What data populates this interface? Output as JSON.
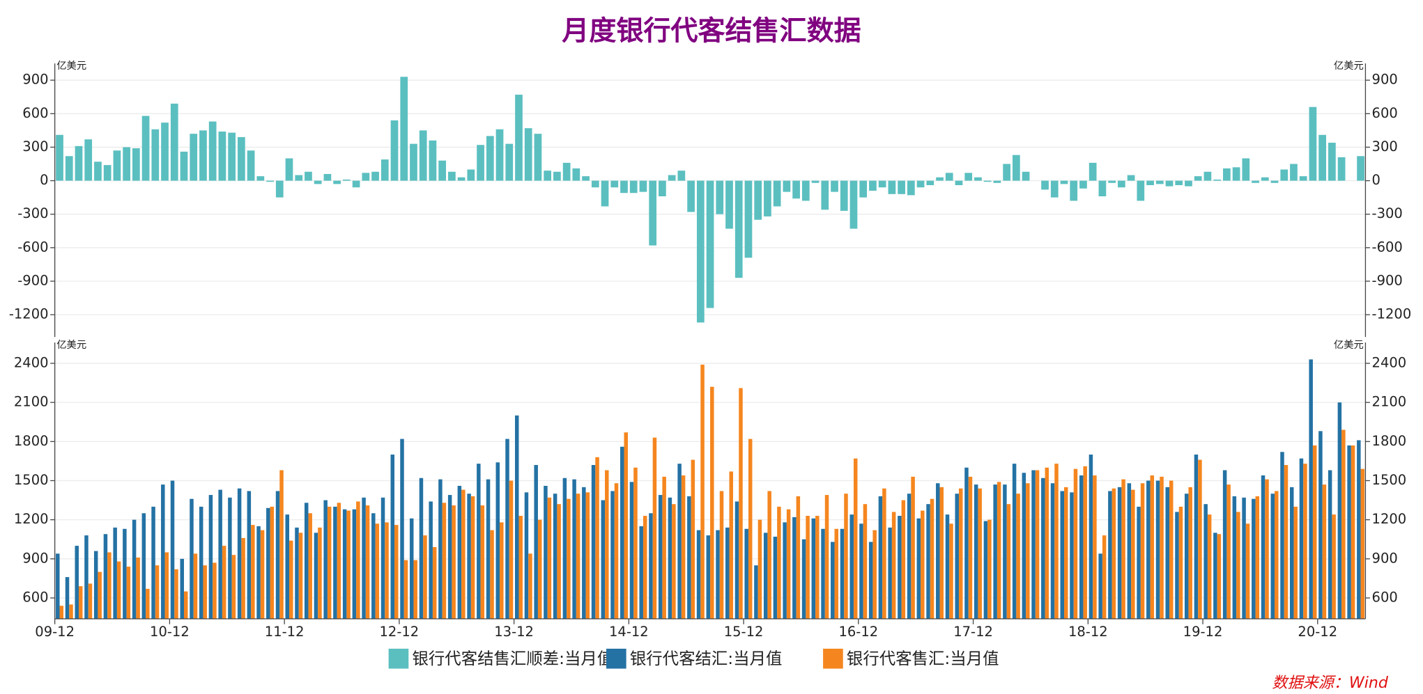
{
  "title": "月度银行代客结售汇数据",
  "source": "数据来源：Wind",
  "chart_data": [
    {
      "type": "bar",
      "ylabel": "亿美元",
      "ylim": [
        -1400,
        1050
      ],
      "yticks": [
        -1200,
        -900,
        -600,
        -300,
        0,
        300,
        600,
        900
      ],
      "grid": true,
      "series": [
        {
          "name": "银行代客结售汇顺差:当月值",
          "color": "#5bbfc0",
          "values": [
            410,
            220,
            310,
            370,
            170,
            140,
            270,
            300,
            290,
            580,
            460,
            520,
            690,
            260,
            420,
            450,
            530,
            440,
            430,
            390,
            270,
            40,
            -10,
            -150,
            200,
            50,
            80,
            -30,
            60,
            -30,
            10,
            -60,
            70,
            80,
            190,
            540,
            930,
            330,
            450,
            360,
            180,
            80,
            30,
            100,
            320,
            400,
            460,
            330,
            770,
            470,
            420,
            90,
            80,
            160,
            110,
            40,
            -60,
            -230,
            -60,
            -110,
            -110,
            -100,
            -580,
            -140,
            50,
            90,
            -280,
            -1270,
            -1140,
            -300,
            -430,
            -870,
            -690,
            -350,
            -320,
            -230,
            -100,
            -160,
            -180,
            -20,
            -260,
            -100,
            -270,
            -430,
            -150,
            -90,
            -60,
            -120,
            -120,
            -130,
            -60,
            -40,
            30,
            70,
            -40,
            70,
            30,
            -10,
            -20,
            150,
            230,
            80,
            0,
            -80,
            -150,
            -30,
            -180,
            -70,
            160,
            -140,
            -20,
            -60,
            50,
            -180,
            -40,
            -30,
            -50,
            -40,
            -50,
            40,
            80,
            10,
            110,
            120,
            200,
            -20,
            30,
            -20,
            100,
            150,
            40,
            660,
            410,
            340,
            210,
            0,
            220
          ]
        }
      ]
    },
    {
      "type": "bar",
      "ylabel": "亿美元",
      "ylim": [
        440,
        2560
      ],
      "yticks": [
        600,
        900,
        1200,
        1500,
        1800,
        2100,
        2400
      ],
      "grid": true,
      "categories": [
        "09-12",
        null,
        null,
        null,
        null,
        null,
        null,
        null,
        null,
        null,
        null,
        null,
        "10-12",
        null,
        null,
        null,
        null,
        null,
        null,
        null,
        null,
        null,
        null,
        null,
        "11-12",
        null,
        null,
        null,
        null,
        null,
        null,
        null,
        null,
        null,
        null,
        null,
        "12-12",
        null,
        null,
        null,
        null,
        null,
        null,
        null,
        null,
        null,
        null,
        null,
        "13-12",
        null,
        null,
        null,
        null,
        null,
        null,
        null,
        null,
        null,
        null,
        null,
        "14-12",
        null,
        null,
        null,
        null,
        null,
        null,
        null,
        null,
        null,
        null,
        null,
        "15-12",
        null,
        null,
        null,
        null,
        null,
        null,
        null,
        null,
        null,
        null,
        null,
        "16-12",
        null,
        null,
        null,
        null,
        null,
        null,
        null,
        null,
        null,
        null,
        null,
        "17-12",
        null,
        null,
        null,
        null,
        null,
        null,
        null,
        null,
        null,
        null,
        null,
        "18-12",
        null,
        null,
        null,
        null,
        null,
        null,
        null,
        null,
        null,
        null,
        null,
        "19-12",
        null,
        null,
        null,
        null,
        null,
        null,
        null,
        null,
        null,
        null,
        null,
        "20-12",
        null,
        null,
        null,
        null
      ],
      "series": [
        {
          "name": "银行代客结汇:当月值",
          "color": "#2472a4",
          "values": [
            940,
            760,
            1000,
            1080,
            960,
            1090,
            1140,
            1130,
            1200,
            1250,
            1300,
            1470,
            1500,
            900,
            1360,
            1300,
            1390,
            1430,
            1370,
            1440,
            1420,
            1150,
            1290,
            1420,
            1240,
            1140,
            1330,
            1100,
            1350,
            1300,
            1280,
            1280,
            1370,
            1250,
            1370,
            1700,
            1820,
            1210,
            1520,
            1340,
            1510,
            1390,
            1460,
            1400,
            1630,
            1510,
            1640,
            1820,
            2000,
            1410,
            1620,
            1460,
            1400,
            1520,
            1510,
            1450,
            1620,
            1350,
            1420,
            1760,
            1490,
            1150,
            1250,
            1390,
            1370,
            1630,
            1380,
            1120,
            1080,
            1120,
            1140,
            1340,
            1130,
            850,
            1100,
            1070,
            1180,
            1220,
            1050,
            1210,
            1130,
            1030,
            1130,
            1240,
            1170,
            1030,
            1380,
            1140,
            1230,
            1400,
            1210,
            1320,
            1480,
            1240,
            1400,
            1600,
            1470,
            1190,
            1470,
            1470,
            1630,
            1560,
            1580,
            1520,
            1480,
            1420,
            1410,
            1540,
            1700,
            940,
            1420,
            1450,
            1480,
            1300,
            1500,
            1500,
            1450,
            1260,
            1400,
            1700,
            1320,
            1100,
            1580,
            1380,
            1370,
            1360,
            1540,
            1400,
            1720,
            1450,
            1670,
            2430,
            1880,
            1580,
            2100,
            1770,
            1810
          ]
        },
        {
          "name": "银行代客售汇:当月值",
          "color": "#f5861f",
          "values": [
            540,
            550,
            690,
            710,
            800,
            950,
            880,
            840,
            910,
            670,
            850,
            950,
            820,
            650,
            940,
            850,
            870,
            1000,
            930,
            1060,
            1160,
            1120,
            1300,
            1580,
            1040,
            1100,
            1250,
            1140,
            1300,
            1330,
            1270,
            1340,
            1310,
            1170,
            1180,
            1160,
            890,
            890,
            1080,
            990,
            1330,
            1310,
            1430,
            1380,
            1310,
            1120,
            1180,
            1500,
            1230,
            940,
            1200,
            1370,
            1320,
            1360,
            1400,
            1410,
            1680,
            1580,
            1480,
            1870,
            1600,
            1230,
            1830,
            1530,
            1320,
            1540,
            1660,
            2390,
            2220,
            1420,
            1570,
            2210,
            1820,
            1200,
            1420,
            1300,
            1280,
            1380,
            1230,
            1230,
            1390,
            1130,
            1400,
            1670,
            1320,
            1120,
            1440,
            1260,
            1350,
            1530,
            1270,
            1360,
            1450,
            1170,
            1440,
            1530,
            1440,
            1200,
            1490,
            1320,
            1400,
            1480,
            1580,
            1600,
            1630,
            1450,
            1590,
            1610,
            1540,
            1080,
            1440,
            1510,
            1430,
            1480,
            1540,
            1530,
            1500,
            1300,
            1450,
            1660,
            1240,
            1090,
            1470,
            1260,
            1170,
            1380,
            1510,
            1420,
            1620,
            1300,
            1630,
            1770,
            1470,
            1240,
            1890,
            1770,
            1590
          ]
        }
      ]
    }
  ]
}
